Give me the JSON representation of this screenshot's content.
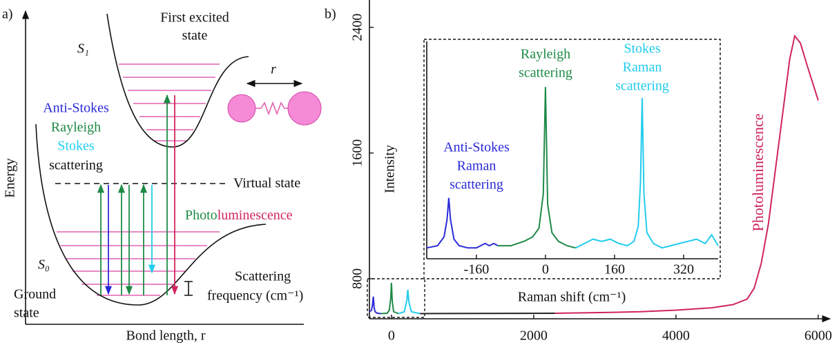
{
  "diagram": {
    "label": "a)",
    "excited_state": [
      "First excited",
      "state"
    ],
    "s1": "S₁",
    "s0": "S₀",
    "bond": "r",
    "processes": [
      "Anti-Stokes",
      "Rayleigh",
      "Stokes",
      "scattering"
    ],
    "virtual_state": "Virtual state",
    "photoluminescence": [
      "Photo",
      "luminescence"
    ],
    "ground_state": [
      "Ground",
      "state"
    ],
    "scattering_frequency": [
      "Scattering",
      "frequency (cm⁻¹)"
    ],
    "ylabel": "Energy",
    "xlabel": "Bond length, r"
  },
  "chart_data": [
    {
      "type": "line",
      "label": "b)",
      "ylabel": "Intensity",
      "xlim": [
        -310,
        6050
      ],
      "xticks": [
        0,
        2000,
        4000,
        6000
      ],
      "ylim": [
        545,
        2530
      ],
      "yticks": [
        800,
        1600,
        2400
      ],
      "series": [
        {
          "color": "#2a2ad8",
          "x": [
            -310,
            -280,
            -265,
            -255,
            -245,
            -230,
            -200,
            -150
          ],
          "values": [
            590,
            600,
            640,
            686,
            620,
            590,
            580,
            578
          ]
        },
        {
          "color": "#1e8a46",
          "x": [
            -150,
            -60,
            -30,
            -10,
            0,
            10,
            30,
            100
          ],
          "values": [
            578,
            580,
            600,
            680,
            774,
            660,
            590,
            578
          ]
        },
        {
          "color": "#22ccee",
          "x": [
            100,
            180,
            215,
            230,
            245,
            280,
            400
          ],
          "values": [
            578,
            590,
            660,
            730,
            650,
            590,
            578
          ]
        },
        {
          "color": "#222222",
          "x": [
            400,
            2300
          ],
          "values": [
            578,
            580
          ]
        },
        {
          "color": "#d0245a",
          "x": [
            2300,
            3000,
            3500,
            4000,
            4500,
            4800,
            5000,
            5100,
            5200,
            5300,
            5400,
            5500,
            5600,
            5670,
            5750,
            5850,
            6000
          ],
          "values": [
            580,
            585,
            590,
            600,
            615,
            635,
            670,
            740,
            900,
            1150,
            1500,
            1850,
            2200,
            2345,
            2300,
            2150,
            1935
          ]
        }
      ],
      "annotation": {
        "text": "Photoluminescence",
        "color": "#d0245a"
      }
    },
    {
      "type": "line",
      "xlabel": "Raman shift (cm⁻¹)",
      "xlim": [
        -275,
        400
      ],
      "xticks": [
        -160,
        0,
        160,
        320
      ],
      "ylim": [
        0,
        100
      ],
      "series": [
        {
          "color": "#2a2ad8",
          "x": [
            -275,
            -250,
            -235,
            -228,
            -224,
            -220,
            -212,
            -200,
            -180,
            -160,
            -140,
            -130,
            -120,
            -110
          ],
          "values": [
            5,
            6,
            10,
            18,
            28,
            18,
            9,
            6,
            5,
            5,
            7,
            6,
            7,
            6
          ]
        },
        {
          "color": "#1e8a46",
          "x": [
            -110,
            -80,
            -50,
            -30,
            -15,
            -5,
            0,
            5,
            15,
            30,
            50,
            70
          ],
          "values": [
            6,
            6,
            8,
            10,
            14,
            30,
            79,
            25,
            12,
            8,
            6,
            5
          ]
        },
        {
          "color": "#22ccee",
          "x": [
            70,
            90,
            110,
            130,
            150,
            170,
            190,
            205,
            215,
            220,
            224,
            228,
            235,
            250,
            270,
            290,
            310,
            330,
            350,
            370,
            385,
            400
          ],
          "values": [
            5,
            7,
            9,
            8,
            9,
            7,
            6,
            8,
            15,
            35,
            74,
            30,
            12,
            7,
            5,
            6,
            7,
            8,
            9,
            7,
            11,
            6
          ]
        }
      ],
      "annotations": [
        {
          "lines": [
            "Anti-Stokes",
            "Raman",
            "scattering"
          ],
          "color": "#2a2ad8"
        },
        {
          "lines": [
            "Rayleigh",
            "scattering"
          ],
          "color": "#1e8a46"
        },
        {
          "lines": [
            "Stokes",
            "Raman",
            "scattering"
          ],
          "color": "#22ccee"
        }
      ]
    }
  ]
}
